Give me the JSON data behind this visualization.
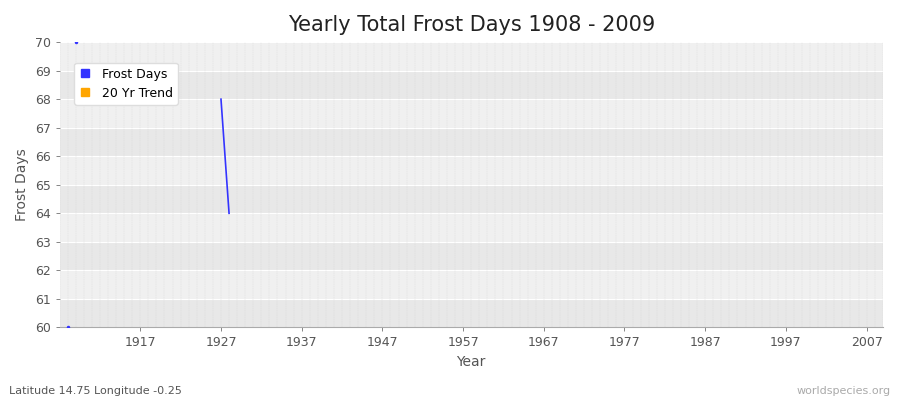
{
  "title": "Yearly Total Frost Days 1908 - 2009",
  "xlabel": "Year",
  "ylabel": "Frost Days",
  "xlim": [
    1907,
    2009
  ],
  "ylim": [
    60,
    70
  ],
  "xticks": [
    1917,
    1927,
    1937,
    1947,
    1957,
    1967,
    1977,
    1987,
    1997,
    2007
  ],
  "yticks": [
    60,
    61,
    62,
    63,
    64,
    65,
    66,
    67,
    68,
    69,
    70
  ],
  "frost_point_x": 1909,
  "frost_point_y": 70,
  "frost_bottom_x": 1908,
  "frost_bottom_y": 60,
  "line_x1": 1927,
  "line_y1": 68,
  "line_x2": 1928,
  "line_y2": 64,
  "frost_color": "#3333ff",
  "trend_color": "#ffa500",
  "fig_bg_color": "#ffffff",
  "plot_bg_color": "#f0f0f0",
  "band_color_light": "#e8e8e8",
  "band_color_dark": "#d8d8d8",
  "grid_major_color": "#ffffff",
  "grid_minor_color": "#cccccc",
  "title_color": "#222222",
  "label_color": "#555555",
  "tick_color": "#555555",
  "subtitle": "Latitude 14.75 Longitude -0.25",
  "watermark": "worldspecies.org",
  "title_fontsize": 15,
  "label_fontsize": 10,
  "tick_fontsize": 9,
  "legend_fontsize": 9
}
